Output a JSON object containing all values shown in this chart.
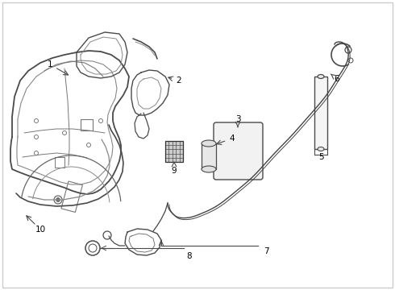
{
  "background_color": "#ffffff",
  "line_color": "#4a4a4a",
  "label_color": "#000000",
  "figure_width": 4.9,
  "figure_height": 3.6,
  "dpi": 100,
  "label_fontsize": 7.5
}
